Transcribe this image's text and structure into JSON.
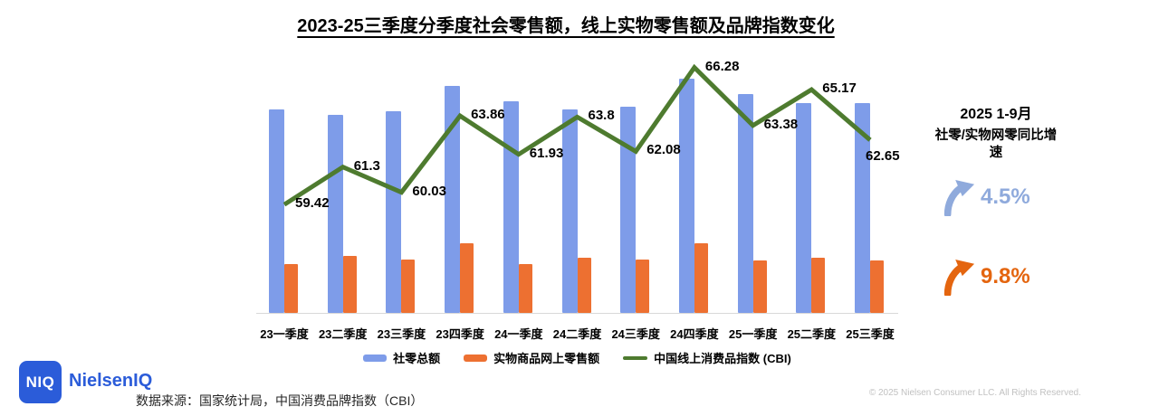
{
  "title": "2023-25三季度分季度社会零售额，线上实物零售额及品牌指数变化",
  "chart_data": {
    "type": "combo",
    "title": "2023-25三季度分季度社会零售额，线上实物零售额及品牌指数变化",
    "categories": [
      "23一季度",
      "23二季度",
      "23三季度",
      "23四季度",
      "24一季度",
      "24二季度",
      "24三季度",
      "24四季度",
      "25一季度",
      "25二季度",
      "25三季度"
    ],
    "series": [
      {
        "name": "社零总额",
        "type": "bar",
        "color": "#7E9CE9",
        "values": [
          11.7,
          11.4,
          11.6,
          13.1,
          12.2,
          11.7,
          11.9,
          13.5,
          12.6,
          12.1,
          12.1
        ],
        "note": "bar value axis not shown in chart — values estimated from bar heights"
      },
      {
        "name": "实物商品网上零售额",
        "type": "bar",
        "color": "#ED7031",
        "values": [
          2.8,
          3.3,
          3.1,
          4.0,
          2.8,
          3.2,
          3.1,
          4.0,
          3.0,
          3.2,
          3.0
        ],
        "note": "bar value axis not shown in chart — values estimated from bar heights"
      },
      {
        "name": "中国线上消费品指数 (CBI)",
        "type": "line",
        "color": "#4E7B2F",
        "values": [
          59.42,
          61.3,
          60.03,
          63.86,
          61.93,
          63.8,
          62.08,
          66.28,
          63.38,
          65.17,
          62.65
        ],
        "data_labels": true
      }
    ],
    "legend_position": "bottom",
    "grid": false,
    "axes_visible": false
  },
  "side_panel": {
    "heading": "2025 1-9月",
    "subheading": "社零/实物网零同比增速",
    "stats": [
      {
        "icon": "up-arrow",
        "value": "4.5%",
        "color": "#8FAADC"
      },
      {
        "icon": "up-arrow",
        "value": "9.8%",
        "color": "#E4650F"
      }
    ]
  },
  "footer": {
    "logo_text": "NIQ",
    "brand": "NielsenIQ",
    "source": "数据来源：国家统计局，中国消费品牌指数（CBI）",
    "copyright": "© 2025 Nielsen Consumer LLC. All Rights Reserved."
  }
}
